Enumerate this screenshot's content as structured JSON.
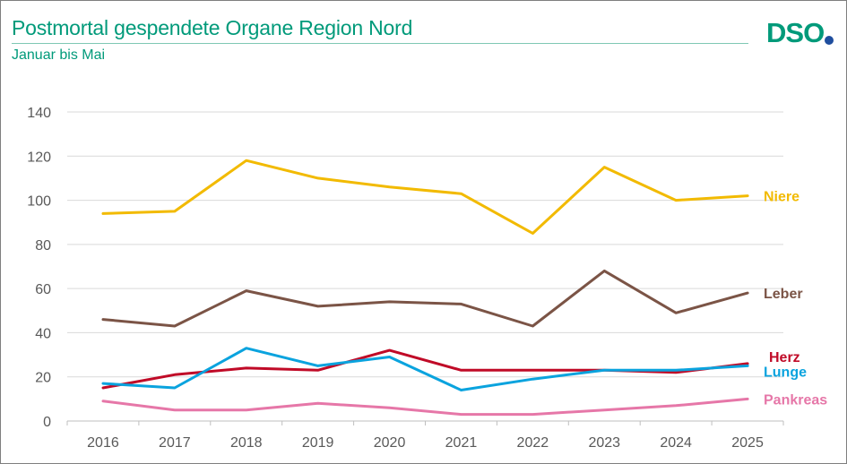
{
  "header": {
    "title": "Postmortal gespendete Organe Region Nord",
    "subtitle": "Januar  bis Mai",
    "logo_text": "DSO",
    "brand_color": "#009A7A",
    "logo_dot_color": "#1F4E9E"
  },
  "chart_data": {
    "type": "line",
    "title": "Postmortal gespendete Organe Region Nord",
    "subtitle": "Januar  bis Mai",
    "x": [
      "2016",
      "2017",
      "2018",
      "2019",
      "2020",
      "2021",
      "2022",
      "2023",
      "2024",
      "2025"
    ],
    "ylim": [
      0,
      140
    ],
    "yticks": [
      0,
      20,
      40,
      60,
      80,
      100,
      120,
      140
    ],
    "grid": true,
    "legend": "inline-right",
    "series": [
      {
        "name": "Niere",
        "color": "#F2BA00",
        "values": [
          94,
          95,
          118,
          110,
          106,
          103,
          85,
          115,
          100,
          102
        ]
      },
      {
        "name": "Leber",
        "color": "#7B5446",
        "values": [
          46,
          43,
          59,
          52,
          54,
          53,
          43,
          68,
          49,
          58
        ]
      },
      {
        "name": "Herz",
        "color": "#C00A27",
        "values": [
          15,
          21,
          24,
          23,
          32,
          23,
          23,
          23,
          22,
          26
        ]
      },
      {
        "name": "Lunge",
        "color": "#0AA3DE",
        "values": [
          17,
          15,
          33,
          25,
          29,
          14,
          19,
          23,
          23,
          25
        ]
      },
      {
        "name": "Pankreas",
        "color": "#E677A8",
        "values": [
          9,
          5,
          5,
          8,
          6,
          3,
          3,
          5,
          7,
          10
        ]
      }
    ]
  }
}
